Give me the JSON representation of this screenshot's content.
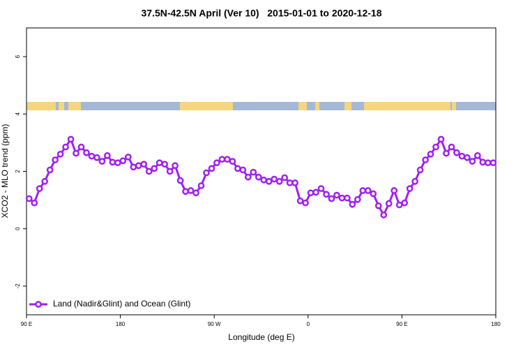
{
  "chart_data": {
    "type": "line",
    "title": "37.5N-42.5N April (Ver 10)   2015-01-01 to 2020-12-18",
    "x_label": "Longitude (deg E)",
    "y_label": "XCO2 - MLO trend (ppm)",
    "x": [
      92.5,
      97.5,
      102.5,
      107.5,
      112.5,
      117.5,
      122.5,
      127.5,
      132.5,
      137.5,
      142.5,
      147.5,
      152.5,
      157.5,
      162.5,
      167.5,
      172.5,
      177.5,
      182.5,
      187.5,
      192.5,
      197.5,
      202.5,
      207.5,
      212.5,
      217.5,
      222.5,
      227.5,
      232.5,
      237.5,
      242.5,
      247.5,
      252.5,
      257.5,
      262.5,
      267.5,
      272.5,
      277.5,
      282.5,
      287.5,
      292.5,
      297.5,
      302.5,
      307.5,
      312.5,
      317.5,
      322.5,
      327.5,
      332.5,
      337.5,
      342.5,
      347.5,
      352.5,
      357.5,
      362.5,
      367.5,
      372.5,
      377.5,
      382.5,
      387.5,
      392.5,
      397.5,
      402.5,
      407.5,
      412.5,
      417.5,
      422.5,
      427.5,
      432.5,
      437.5,
      442.5,
      447.5,
      452.5,
      457.5,
      462.5,
      467.5,
      472.5,
      477.5,
      482.5,
      487.5,
      492.5,
      497.5,
      502.5,
      507.5,
      512.5,
      517.5,
      522.5,
      527.5,
      532.5,
      537.5
    ],
    "series": [
      {
        "name": "Land (Nadir&Glint) and Ocean (Glint)",
        "color": "#a020f0",
        "values": [
          1.05,
          0.9,
          1.4,
          1.65,
          2.05,
          2.4,
          2.6,
          2.85,
          3.12,
          2.63,
          2.85,
          2.65,
          2.53,
          2.48,
          2.35,
          2.55,
          2.32,
          2.3,
          2.37,
          2.5,
          2.15,
          2.2,
          2.25,
          2.0,
          2.1,
          2.3,
          2.25,
          2.0,
          2.2,
          1.68,
          1.3,
          1.33,
          1.25,
          1.5,
          1.95,
          2.1,
          2.3,
          2.42,
          2.42,
          2.35,
          2.1,
          2.05,
          1.8,
          1.97,
          1.8,
          1.7,
          1.65,
          1.73,
          1.65,
          1.78,
          1.6,
          1.6,
          0.97,
          0.9,
          1.25,
          1.27,
          1.4,
          1.2,
          1.05,
          1.17,
          1.07,
          1.07,
          0.85,
          1.02,
          1.33,
          1.33,
          1.22,
          0.8,
          0.48,
          0.88,
          1.33,
          0.83,
          0.9,
          1.4,
          1.65,
          2.05,
          2.4,
          2.6,
          2.85,
          3.12,
          2.63,
          2.85,
          2.65,
          2.53,
          2.48,
          2.35,
          2.55,
          2.32,
          2.3,
          2.3
        ]
      }
    ],
    "xlim": [
      90,
      540
    ],
    "xticks": [
      {
        "value": 90,
        "label": "90 E"
      },
      180,
      {
        "value": 270,
        "label": "90 W"
      },
      {
        "value": 360,
        "label": "0"
      },
      {
        "value": 450,
        "label": "90 E"
      },
      {
        "value": 540,
        "label": "180"
      }
    ],
    "ylim": [
      -3,
      7
    ],
    "yticks": [
      -2,
      0,
      2,
      4,
      6
    ],
    "grid": false,
    "legend_position": "bottom-left"
  }
}
